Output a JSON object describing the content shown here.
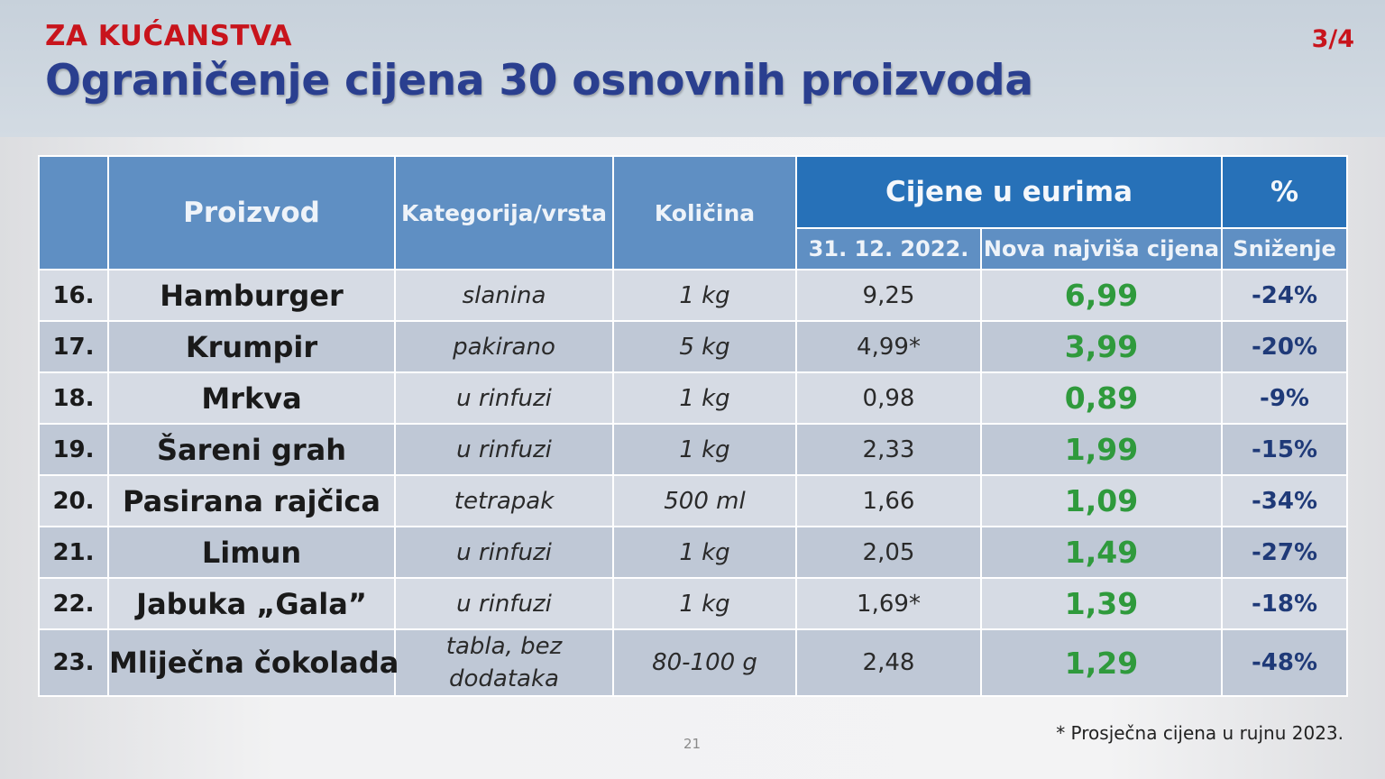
{
  "header": {
    "kicker": "ZA KUĆANSTVA",
    "title": "Ograničenje cijena 30 osnovnih proizvoda",
    "page_count": "3/4"
  },
  "table": {
    "headers": {
      "product": "Proizvod",
      "category": "Kategorija/vrsta",
      "quantity": "Količina",
      "prices_group": "Cijene u eurima",
      "percent_group": "%",
      "old_price": "31. 12. 2022.",
      "new_price": "Nova najviša cijena",
      "reduction": "Sniženje"
    },
    "rows": [
      {
        "num": "16.",
        "product": "Hamburger",
        "category": "slanina",
        "quantity": "1 kg",
        "old_price": "9,25",
        "new_price": "6,99",
        "reduction": "-24%"
      },
      {
        "num": "17.",
        "product": "Krumpir",
        "category": "pakirano",
        "quantity": "5 kg",
        "old_price": "4,99*",
        "new_price": "3,99",
        "reduction": "-20%"
      },
      {
        "num": "18.",
        "product": "Mrkva",
        "category": "u rinfuzi",
        "quantity": "1 kg",
        "old_price": "0,98",
        "new_price": "0,89",
        "reduction": "-9%"
      },
      {
        "num": "19.",
        "product": "Šareni grah",
        "category": "u rinfuzi",
        "quantity": "1 kg",
        "old_price": "2,33",
        "new_price": "1,99",
        "reduction": "-15%"
      },
      {
        "num": "20.",
        "product": "Pasirana rajčica",
        "category": "tetrapak",
        "quantity": "500 ml",
        "old_price": "1,66",
        "new_price": "1,09",
        "reduction": "-34%"
      },
      {
        "num": "21.",
        "product": "Limun",
        "category": "u rinfuzi",
        "quantity": "1 kg",
        "old_price": "2,05",
        "new_price": "1,49",
        "reduction": "-27%"
      },
      {
        "num": "22.",
        "product": "Jabuka „Gala”",
        "category": "u rinfuzi",
        "quantity": "1 kg",
        "old_price": "1,69*",
        "new_price": "1,39",
        "reduction": "-18%"
      },
      {
        "num": "23.",
        "product": "Mliječna čokolada",
        "category": "tabla, bez dodataka",
        "quantity": "80-100 g",
        "old_price": "2,48",
        "new_price": "1,29",
        "reduction": "-48%"
      }
    ]
  },
  "footnote": "* Prosječna cijena u rujnu 2023.",
  "page_number": "21",
  "colors": {
    "kicker_red": "#c8141c",
    "title_blue": "#2a3f8f",
    "header_dark_blue": "#2771b8",
    "header_light_blue": "#5f8fc3",
    "new_price_green": "#2f9a3c",
    "percent_blue": "#1f3a78"
  }
}
